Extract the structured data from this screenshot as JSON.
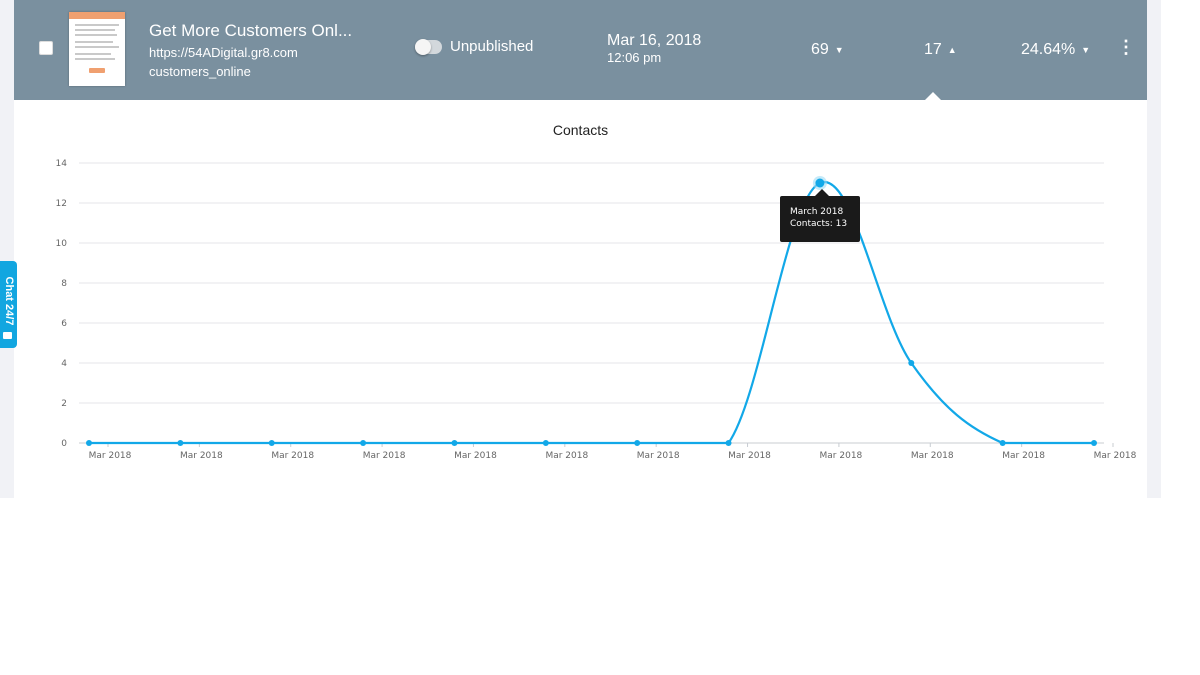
{
  "row": {
    "title": "Get More Customers Onl...",
    "url": "https://54ADigital.gr8.com",
    "slug": "customers_online",
    "status": "Unpublished",
    "date": "Mar 16, 2018",
    "time": "12:06 pm",
    "stat_visits": "69",
    "stat_contacts": "17",
    "stat_rate": "24.64%"
  },
  "chat": {
    "label": "Chat 24/7"
  },
  "tooltip": {
    "line1": "March 2018",
    "line2": "Contacts: 13"
  },
  "chart_data": {
    "type": "line",
    "title": "Contacts",
    "categories": [
      "Mar 2018",
      "Mar 2018",
      "Mar 2018",
      "Mar 2018",
      "Mar 2018",
      "Mar 2018",
      "Mar 2018",
      "Mar 2018",
      "Mar 2018",
      "Mar 2018",
      "Mar 2018",
      "Mar 2018"
    ],
    "series": [
      {
        "values": [
          0,
          0,
          0,
          0,
          0,
          0,
          0,
          0,
          13,
          4,
          0,
          0
        ]
      }
    ],
    "ylim": [
      0,
      14
    ],
    "yticks": [
      0,
      2,
      4,
      6,
      8,
      10,
      12,
      14
    ],
    "grid": true,
    "line_color": "#12a8e8"
  }
}
